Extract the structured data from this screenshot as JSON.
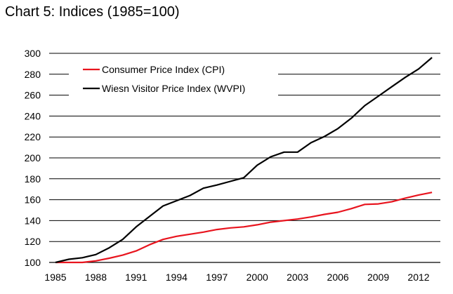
{
  "chart_data": {
    "type": "line",
    "title": "Chart 5: Indices (1985=100)",
    "xlabel": "",
    "ylabel": "",
    "xlim": [
      1985,
      2014
    ],
    "ylim": [
      100,
      300
    ],
    "x_ticks": [
      1985,
      1988,
      1991,
      1994,
      1997,
      2000,
      2003,
      2006,
      2009,
      2012
    ],
    "y_ticks": [
      100,
      120,
      140,
      160,
      180,
      200,
      220,
      240,
      260,
      280,
      300
    ],
    "grid": "horizontal",
    "legend_position": "top-left",
    "x": [
      1985,
      1986,
      1987,
      1988,
      1989,
      1990,
      1991,
      1992,
      1993,
      1994,
      1995,
      1996,
      1997,
      1998,
      1999,
      2000,
      2001,
      2002,
      2003,
      2004,
      2005,
      2006,
      2007,
      2008,
      2009,
      2010,
      2011,
      2012,
      2013
    ],
    "series": [
      {
        "name": "Consumer Price Index (CPI)",
        "color": "#e8141e",
        "values": [
          100,
          100,
          100,
          101.5,
          104,
          107,
          111,
          117,
          122,
          125,
          127,
          129,
          131.5,
          133,
          134,
          136,
          138.5,
          140,
          141.5,
          143.5,
          146,
          148,
          151.5,
          155.5,
          156,
          158,
          161.5,
          164.5,
          167
        ]
      },
      {
        "name": "Wiesn Visitor Price Index (WVPI)",
        "color": "#000000",
        "values": [
          100,
          103,
          104.5,
          107.5,
          114,
          122,
          134,
          144,
          154,
          159,
          164,
          171,
          174,
          177.5,
          181,
          193,
          201,
          205.5,
          205.5,
          214.5,
          220.5,
          228,
          238,
          250,
          259,
          268,
          277,
          285,
          296
        ]
      }
    ]
  }
}
